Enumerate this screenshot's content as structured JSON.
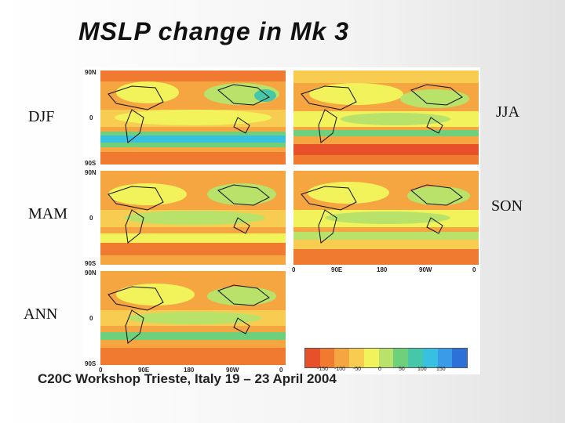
{
  "slide": {
    "title": "MSLP change in Mk 3",
    "footer": "C20C Workshop Trieste, Italy 19 – 23 April 2004"
  },
  "panels": [
    {
      "id": "djf",
      "label": "DJF"
    },
    {
      "id": "jja",
      "label": "JJA"
    },
    {
      "id": "mam",
      "label": "MAM"
    },
    {
      "id": "son",
      "label": "SON"
    },
    {
      "id": "ann",
      "label": "ANN"
    }
  ],
  "axes": {
    "lat_ticks": [
      "90N",
      "0",
      "90S"
    ],
    "lon_ticks": [
      "0",
      "90E",
      "180",
      "90W",
      "0"
    ]
  },
  "legend": {
    "colors": [
      "#e8502a",
      "#f07a30",
      "#f6a640",
      "#f8cc50",
      "#f2f25a",
      "#b8e26a",
      "#6ed07a",
      "#46c8a8",
      "#38c0e0",
      "#3a9ce8",
      "#2c70d8"
    ],
    "values": [
      "-150",
      "-100",
      "-50",
      "0",
      "50",
      "100",
      "150"
    ]
  }
}
